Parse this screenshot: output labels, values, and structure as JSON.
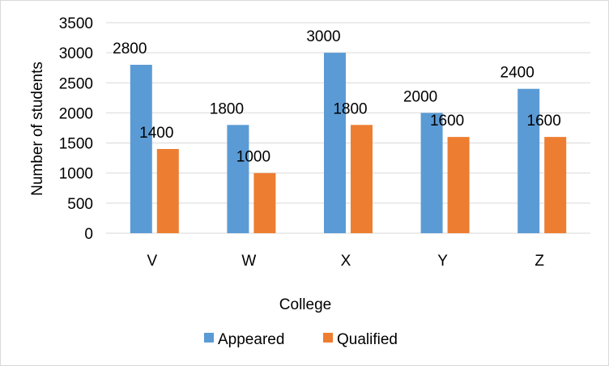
{
  "chart_data": {
    "type": "bar",
    "categories": [
      "V",
      "W",
      "X",
      "Y",
      "Z"
    ],
    "series": [
      {
        "name": "Appeared",
        "values": [
          2800,
          1800,
          3000,
          2000,
          2400
        ],
        "color": "#5B9BD5"
      },
      {
        "name": "Qualified",
        "values": [
          1400,
          1000,
          1800,
          1600,
          1600
        ],
        "color": "#ED7D31"
      }
    ],
    "title": "",
    "xlabel": "College",
    "ylabel": "Number of students",
    "ylim": [
      0,
      3500
    ],
    "yticks": [
      0,
      500,
      1000,
      1500,
      2000,
      2500,
      3000,
      3500
    ],
    "grid": true,
    "legend": "bottom"
  }
}
